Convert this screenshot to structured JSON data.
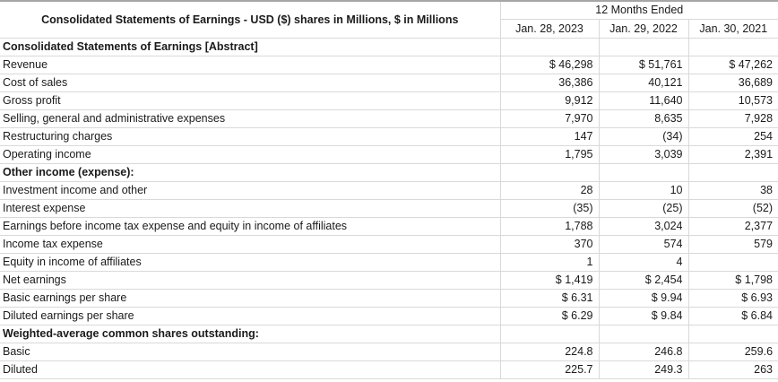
{
  "table": {
    "title": "Consolidated Statements of Earnings - USD ($) shares in Millions, $ in Millions",
    "period_header": "12 Months Ended",
    "columns": [
      "Jan. 28, 2023",
      "Jan. 29, 2022",
      "Jan. 30, 2021"
    ],
    "rows": [
      {
        "label": "Consolidated Statements of Earnings [Abstract]",
        "bold": true,
        "values": [
          "",
          "",
          ""
        ]
      },
      {
        "label": "Revenue",
        "bold": false,
        "values": [
          "$ 46,298",
          "$ 51,761",
          "$ 47,262"
        ]
      },
      {
        "label": "Cost of sales",
        "bold": false,
        "values": [
          "36,386",
          "40,121",
          "36,689"
        ]
      },
      {
        "label": "Gross profit",
        "bold": false,
        "values": [
          "9,912",
          "11,640",
          "10,573"
        ]
      },
      {
        "label": "Selling, general and administrative expenses",
        "bold": false,
        "values": [
          "7,970",
          "8,635",
          "7,928"
        ]
      },
      {
        "label": "Restructuring charges",
        "bold": false,
        "values": [
          "147",
          "(34)",
          "254"
        ]
      },
      {
        "label": "Operating income",
        "bold": false,
        "values": [
          "1,795",
          "3,039",
          "2,391"
        ]
      },
      {
        "label": "Other income (expense):",
        "bold": true,
        "values": [
          "",
          "",
          ""
        ]
      },
      {
        "label": "Investment income and other",
        "bold": false,
        "values": [
          "28",
          "10",
          "38"
        ]
      },
      {
        "label": "Interest expense",
        "bold": false,
        "values": [
          "(35)",
          "(25)",
          "(52)"
        ]
      },
      {
        "label": "Earnings before income tax expense and equity in income of affiliates",
        "bold": false,
        "values": [
          "1,788",
          "3,024",
          "2,377"
        ]
      },
      {
        "label": "Income tax expense",
        "bold": false,
        "values": [
          "370",
          "574",
          "579"
        ]
      },
      {
        "label": "Equity in income of affiliates",
        "bold": false,
        "values": [
          "1",
          "4",
          ""
        ]
      },
      {
        "label": "Net earnings",
        "bold": false,
        "values": [
          "$ 1,419",
          "$ 2,454",
          "$ 1,798"
        ]
      },
      {
        "label": "Basic earnings per share",
        "bold": false,
        "values": [
          "$ 6.31",
          "$ 9.94",
          "$ 6.93"
        ]
      },
      {
        "label": "Diluted earnings per share",
        "bold": false,
        "values": [
          "$ 6.29",
          "$ 9.84",
          "$ 6.84"
        ]
      },
      {
        "label": "Weighted-average common shares outstanding:",
        "bold": true,
        "values": [
          "",
          "",
          ""
        ]
      },
      {
        "label": "Basic",
        "bold": false,
        "values": [
          "224.8",
          "246.8",
          "259.6"
        ]
      },
      {
        "label": "Diluted",
        "bold": false,
        "values": [
          "225.7",
          "249.3",
          "263"
        ]
      }
    ]
  }
}
